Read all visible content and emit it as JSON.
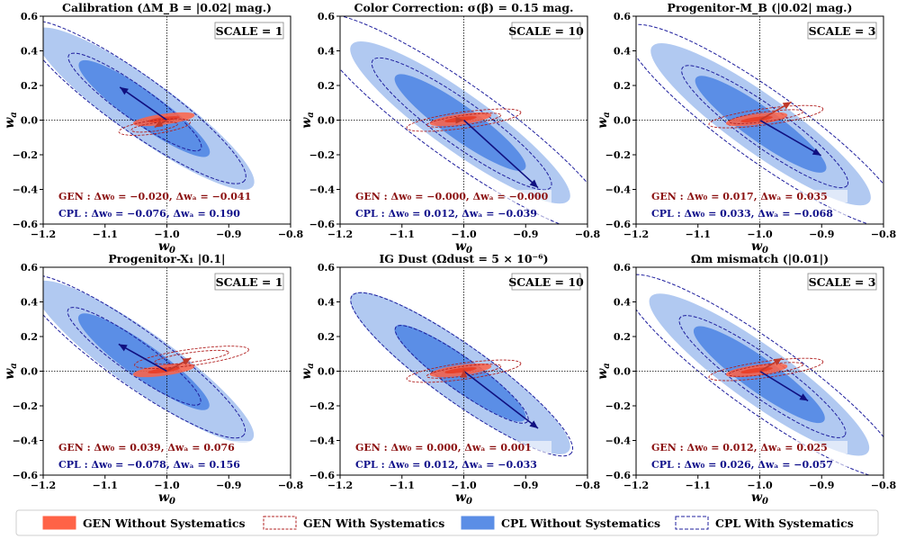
{
  "figure_title": "",
  "colors": {
    "gen_fill": "#ff6347",
    "gen_line": "#b22222",
    "gen_text": "#8b1010",
    "cpl_inner": "#5b8ee6",
    "cpl_outer": "#a9c4f0",
    "cpl_line": "#1f1f9e",
    "cpl_text": "#10108a",
    "arrow": "#101080"
  },
  "legend": [
    {
      "key": "gen-without",
      "label": "GEN Without Systematics"
    },
    {
      "key": "gen-with",
      "label": "GEN With Systematics"
    },
    {
      "key": "cpl-without",
      "label": "CPL Without Systematics"
    },
    {
      "key": "cpl-with",
      "label": "CPL With Systematics"
    }
  ],
  "chart_data": [
    {
      "type": "contour",
      "title": "Calibration (ΔM_B = |0.02| mag.)",
      "title_display": "Calibration (ΔM_B = |0.02| mag.)",
      "scale_label": "SCALE = 1",
      "xlabel": "w_0",
      "ylabel": "w_a",
      "xlim": [
        -1.2,
        -0.8
      ],
      "ylim": [
        -0.6,
        0.6
      ],
      "xticks": [
        "−1.2",
        "−1.1",
        "−1.0",
        "−0.9",
        "−0.8"
      ],
      "yticks": [
        "0.6",
        "0.4",
        "0.2",
        "0.0",
        "−0.2",
        "−0.4",
        "−0.6"
      ],
      "fiducial": {
        "w0": -1.0,
        "wa": 0.0
      },
      "gen": {
        "dw0": -0.02,
        "dwa": -0.041
      },
      "cpl": {
        "dw0": -0.076,
        "dwa": 0.19
      },
      "gen_text": "GEN :  Δw₀ = −0.020,  Δwₐ = −0.041",
      "cpl_text": "CPL :  Δw₀ = −0.076,  Δwₐ = 0.190",
      "scale": 1,
      "gen_with_center": [
        -1.02,
        -0.04
      ],
      "gen_with_orient": "narrow",
      "cpl_with_scale": 1.0
    },
    {
      "type": "contour",
      "title": "Color Correction: σ(β) = 0.15 mag.",
      "title_display": "Color Correction: σ(β) = 0.15 mag.",
      "scale_label": "SCALE = 10",
      "xlabel": "w_0",
      "ylabel": "w_a",
      "xlim": [
        -1.2,
        -0.8
      ],
      "ylim": [
        -0.6,
        0.6
      ],
      "xticks": [
        "−1.2",
        "−1.1",
        "−1.0",
        "−0.9",
        "−0.8"
      ],
      "yticks": [
        "0.6",
        "0.4",
        "0.2",
        "0.0",
        "−0.2",
        "−0.4",
        "−0.6"
      ],
      "fiducial": {
        "w0": -1.0,
        "wa": 0.0
      },
      "gen": {
        "dw0": -0.0,
        "dwa": -0.0
      },
      "cpl": {
        "dw0": 0.012,
        "dwa": -0.039
      },
      "gen_text": "GEN :  Δw₀ = −0.000,  Δwₐ = −0.000",
      "cpl_text": "CPL :  Δw₀ = 0.012,  Δwₐ = −0.039",
      "scale": 10,
      "gen_with_center": [
        -1.0,
        0.0
      ],
      "gen_with_orient": "wide",
      "cpl_with_scale": 1.35
    },
    {
      "type": "contour",
      "title": "Progenitor-M_B (|0.02| mag.)",
      "title_display": "Progenitor-M_B (|0.02| mag.)",
      "scale_label": "SCALE = 3",
      "xlabel": "w_0",
      "ylabel": "w_a",
      "xlim": [
        -1.2,
        -0.8
      ],
      "ylim": [
        -0.6,
        0.6
      ],
      "xticks": [
        "−1.2",
        "−1.1",
        "−1.0",
        "−0.9",
        "−0.8"
      ],
      "yticks": [
        "0.6",
        "0.4",
        "0.2",
        "0.0",
        "−0.2",
        "−0.4",
        "−0.6"
      ],
      "fiducial": {
        "w0": -1.0,
        "wa": 0.0
      },
      "gen": {
        "dw0": 0.017,
        "dwa": 0.035
      },
      "cpl": {
        "dw0": 0.033,
        "dwa": -0.068
      },
      "gen_text": "GEN :  Δw₀ = 0.017,  Δwₐ = 0.035",
      "cpl_text": "CPL :  Δw₀ = 0.033,  Δwₐ = −0.068",
      "scale": 3,
      "gen_with_center": [
        -0.99,
        0.02
      ],
      "gen_with_orient": "wide",
      "cpl_with_scale": 1.25
    },
    {
      "type": "contour",
      "title": "Progenitor-X_1 |0.1|",
      "title_display": "Progenitor-X₁ |0.1|",
      "scale_label": "SCALE = 1",
      "xlabel": "w_0",
      "ylabel": "w_a",
      "xlim": [
        -1.2,
        -0.8
      ],
      "ylim": [
        -0.6,
        0.6
      ],
      "xticks": [
        "−1.2",
        "−1.1",
        "−1.0",
        "−0.9",
        "−0.8"
      ],
      "yticks": [
        "0.6",
        "0.4",
        "0.2",
        "0.0",
        "−0.2",
        "−0.4",
        "−0.6"
      ],
      "fiducial": {
        "w0": -1.0,
        "wa": 0.0
      },
      "gen": {
        "dw0": 0.039,
        "dwa": 0.076
      },
      "cpl": {
        "dw0": -0.078,
        "dwa": 0.156
      },
      "gen_text": "GEN :  Δw₀ = 0.039,  Δwₐ = 0.076",
      "cpl_text": "CPL :  Δw₀ = −0.078,  Δwₐ = 0.156",
      "scale": 1,
      "gen_with_center": [
        -0.96,
        0.08
      ],
      "gen_with_orient": "wide",
      "cpl_with_scale": 1.0
    },
    {
      "type": "contour",
      "title": "IG Dust (Ω_dust = 5 × 10^-6)",
      "title_display": "IG Dust (Ωdust = 5 × 10⁻⁶)",
      "scale_label": "SCALE = 10",
      "xlabel": "w_0",
      "ylabel": "w_a",
      "xlim": [
        -1.2,
        -0.8
      ],
      "ylim": [
        -0.6,
        0.6
      ],
      "xticks": [
        "−1.2",
        "−1.1",
        "−1.0",
        "−0.9",
        "−0.8"
      ],
      "yticks": [
        "0.6",
        "0.4",
        "0.2",
        "0.0",
        "−0.2",
        "−0.4",
        "−0.6"
      ],
      "fiducial": {
        "w0": -1.0,
        "wa": 0.0
      },
      "gen": {
        "dw0": 0.0,
        "dwa": 0.001
      },
      "cpl": {
        "dw0": 0.012,
        "dwa": -0.033
      },
      "gen_text": "GEN :  Δw₀ = 0.000,  Δwₐ = 0.001",
      "cpl_text": "CPL :  Δw₀ = 0.012,  Δwₐ = −0.033",
      "scale": 10,
      "gen_with_center": [
        -1.0,
        0.0
      ],
      "gen_with_orient": "wide",
      "cpl_with_scale": 1.0
    },
    {
      "type": "contour",
      "title": "Ω_m mismatch (|0.01|)",
      "title_display": "Ωm mismatch (|0.01|)",
      "scale_label": "SCALE = 3",
      "xlabel": "w_0",
      "ylabel": "w_a",
      "xlim": [
        -1.2,
        -0.8
      ],
      "ylim": [
        -0.6,
        0.6
      ],
      "xticks": [
        "−1.2",
        "−1.1",
        "−1.0",
        "−0.9",
        "−0.8"
      ],
      "yticks": [
        "0.6",
        "0.4",
        "0.2",
        "0.0",
        "−0.2",
        "−0.4",
        "−0.6"
      ],
      "fiducial": {
        "w0": -1.0,
        "wa": 0.0
      },
      "gen": {
        "dw0": 0.012,
        "dwa": 0.025
      },
      "cpl": {
        "dw0": 0.026,
        "dwa": -0.057
      },
      "gen_text": "GEN :  Δw₀ = 0.012,  Δwₐ = 0.025",
      "cpl_text": "CPL :  Δw₀ = 0.026,  Δwₐ = −0.057",
      "scale": 3,
      "gen_with_center": [
        -0.99,
        0.01
      ],
      "gen_with_orient": "wide",
      "cpl_with_scale": 1.25
    }
  ]
}
